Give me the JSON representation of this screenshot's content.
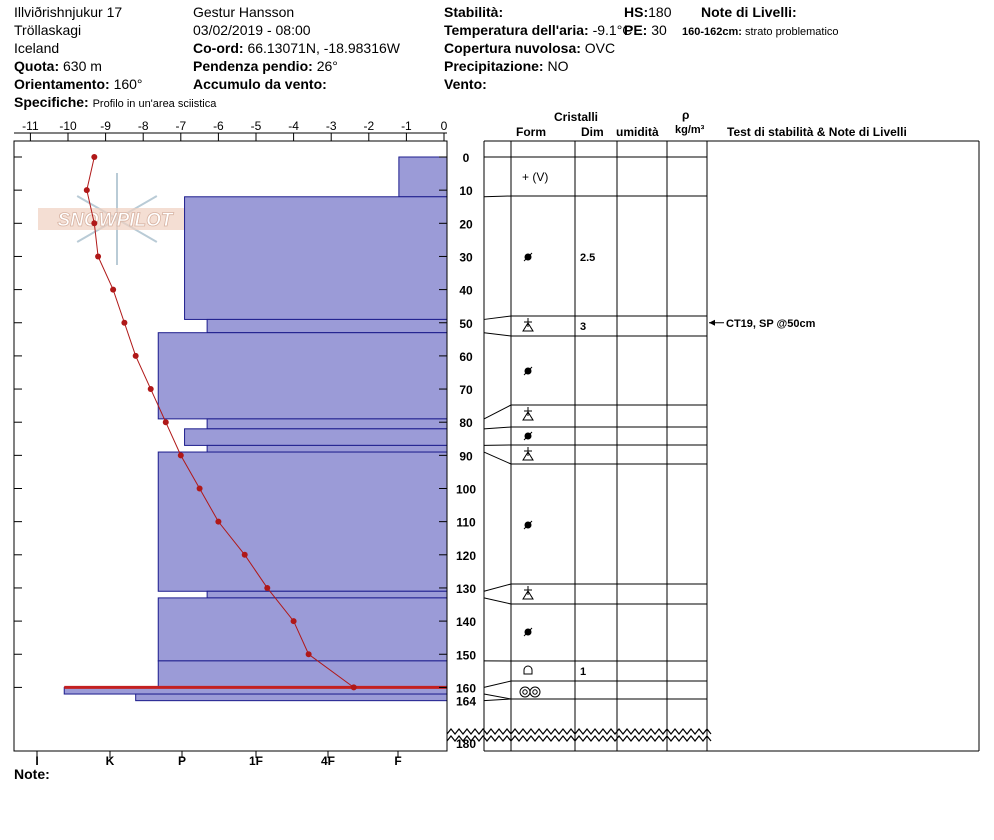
{
  "header": {
    "location": "Illviðrishnjukur 17",
    "region": "Tröllaskagi",
    "country": "Iceland",
    "elevation_label": "Quota:",
    "elevation_value": "630 m",
    "aspect_label": "Orientamento:",
    "aspect_value": "160°",
    "specifics_label": "Specifiche:",
    "specifics_value": "Profilo in un'area sciistica",
    "observer": "Gestur Hansson",
    "datetime": "03/02/2019 - 08:00",
    "coord_label": "Co-ord:",
    "coord_value": "66.13071N, -18.98316W",
    "slope_label": "Pendenza pendio:",
    "slope_value": "26°",
    "wind_loading_label": "Accumulo da vento:",
    "wind_loading_value": "",
    "stability_label": "Stabilità:",
    "stability_value": "",
    "air_temp_label": "Temperatura dell'aria:",
    "air_temp_value": "-9.1°C",
    "hs_label": "HS:",
    "hs_value": "180",
    "pe_label": "PE:",
    "pe_value": "30",
    "cloud_label": "Copertura nuvolosa:",
    "cloud_value": "OVC",
    "precip_label": "Precipitazione:",
    "precip_value": "NO",
    "wind_label": "Vento:",
    "wind_value": "",
    "layer_notes_label": "Note di Livelli:",
    "layer_note_range": "160-162cm:",
    "layer_note_text": "strato problematico"
  },
  "logo_text": "SNOWPILOT",
  "table_headers": {
    "crystals": "Cristalli",
    "form": "Form",
    "size": "Dim",
    "moisture": "umidità",
    "rho": "ρ",
    "density_unit": "kg/m³",
    "tests": "Test di stabilità & Note di Livelli"
  },
  "note_label": "Note:",
  "chart_data": {
    "type": "snow-profile",
    "temperature_axis": {
      "ticks": [
        -11,
        -10,
        -9,
        -8,
        -7,
        -6,
        -5,
        -4,
        -3,
        -2,
        -1,
        0
      ],
      "range": [
        -11.4,
        0
      ]
    },
    "depth_axis": {
      "ticks": [
        0,
        10,
        20,
        30,
        40,
        50,
        60,
        70,
        80,
        90,
        100,
        110,
        120,
        130,
        140,
        150,
        160,
        164,
        180
      ],
      "range": [
        0,
        180
      ]
    },
    "hardness_axis": {
      "labels": [
        "I",
        "K",
        "P",
        "1F",
        "4F",
        "F"
      ]
    },
    "hardness_scale_note": "hardness_cm is the bar extent leftward from the 0°C axis, expressed on the temperature scale",
    "layers": [
      {
        "top": 0,
        "bottom": 12,
        "hardness_cm": -1.2,
        "form": "+ (V)",
        "size": ""
      },
      {
        "top": 12,
        "bottom": 49,
        "hardness_cm": -6.9,
        "form": "melt-form",
        "size": "2.5"
      },
      {
        "top": 49,
        "bottom": 53,
        "hardness_cm": -6.3,
        "form": "surface-hoar",
        "size": "3"
      },
      {
        "top": 53,
        "bottom": 79,
        "hardness_cm": -7.6,
        "form": "melt-form",
        "size": ""
      },
      {
        "top": 79,
        "bottom": 82,
        "hardness_cm": -6.3,
        "form": "surface-hoar",
        "size": ""
      },
      {
        "top": 82,
        "bottom": 87,
        "hardness_cm": -6.9,
        "form": "melt-form",
        "size": ""
      },
      {
        "top": 87,
        "bottom": 89,
        "hardness_cm": -6.3,
        "form": "surface-hoar",
        "size": ""
      },
      {
        "top": 89,
        "bottom": 131,
        "hardness_cm": -7.6,
        "form": "melt-form",
        "size": ""
      },
      {
        "top": 131,
        "bottom": 133,
        "hardness_cm": -6.3,
        "form": "surface-hoar",
        "size": ""
      },
      {
        "top": 133,
        "bottom": 152,
        "hardness_cm": -7.6,
        "form": "melt-form",
        "size": ""
      },
      {
        "top": 152,
        "bottom": 160,
        "hardness_cm": -7.6,
        "form": "rounded",
        "size": "1"
      },
      {
        "top": 160,
        "bottom": 162,
        "hardness_cm": -10.1,
        "form": "ice",
        "size": ""
      },
      {
        "top": 162,
        "bottom": 164,
        "hardness_cm": -8.2,
        "form": "ice",
        "size": ""
      }
    ],
    "temperature_profile": [
      {
        "depth": 0,
        "temp": -9.3
      },
      {
        "depth": 10,
        "temp": -9.5
      },
      {
        "depth": 20,
        "temp": -9.3
      },
      {
        "depth": 30,
        "temp": -9.2
      },
      {
        "depth": 40,
        "temp": -8.8
      },
      {
        "depth": 50,
        "temp": -8.5
      },
      {
        "depth": 60,
        "temp": -8.2
      },
      {
        "depth": 70,
        "temp": -7.8
      },
      {
        "depth": 80,
        "temp": -7.4
      },
      {
        "depth": 90,
        "temp": -7.0
      },
      {
        "depth": 100,
        "temp": -6.5
      },
      {
        "depth": 110,
        "temp": -6.0
      },
      {
        "depth": 120,
        "temp": -5.3
      },
      {
        "depth": 130,
        "temp": -4.7
      },
      {
        "depth": 140,
        "temp": -4.0
      },
      {
        "depth": 150,
        "temp": -3.6
      },
      {
        "depth": 160,
        "temp": -2.4
      }
    ],
    "stability_test": {
      "depth": 50,
      "label": "CT19, SP @50cm"
    },
    "colors": {
      "bars": "#9b9bd7",
      "bar_edge": "#1c1c8c",
      "temp_line": "#b01818",
      "ice_line": "#c42020"
    }
  }
}
